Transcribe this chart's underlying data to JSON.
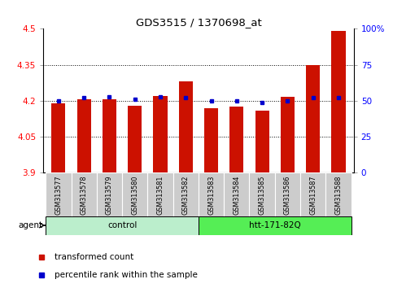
{
  "title": "GDS3515 / 1370698_at",
  "samples": [
    "GSM313577",
    "GSM313578",
    "GSM313579",
    "GSM313580",
    "GSM313581",
    "GSM313582",
    "GSM313583",
    "GSM313584",
    "GSM313585",
    "GSM313586",
    "GSM313587",
    "GSM313588"
  ],
  "transformed_count": [
    4.19,
    4.205,
    4.205,
    4.18,
    4.22,
    4.28,
    4.17,
    4.175,
    4.16,
    4.215,
    4.35,
    4.49
  ],
  "percentile_rank": [
    50,
    52,
    53,
    51,
    53,
    52,
    50,
    50,
    49,
    50,
    52,
    52
  ],
  "y_min": 3.9,
  "y_max": 4.5,
  "y_ticks": [
    3.9,
    4.05,
    4.2,
    4.35,
    4.5
  ],
  "right_y_ticks": [
    0,
    25,
    50,
    75,
    100
  ],
  "right_y_labels": [
    "0",
    "25",
    "50",
    "75",
    "100%"
  ],
  "bar_color": "#cc1100",
  "dot_color": "#0000cc",
  "bar_width": 0.55,
  "control_color": "#bbeecc",
  "htt_color": "#55ee55",
  "group_border_color": "#000000",
  "tick_box_color": "#cccccc"
}
